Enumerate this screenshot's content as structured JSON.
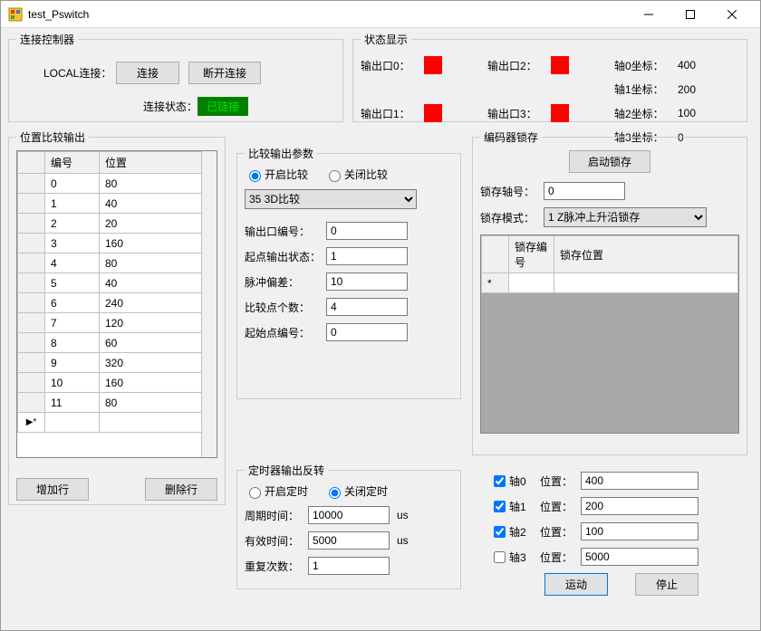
{
  "window": {
    "title": "test_Pswitch"
  },
  "connect_group": {
    "legend": "连接控制器",
    "local_label": "LOCAL连接：",
    "connect_btn": "连接",
    "disconnect_btn": "断开连接",
    "status_label": "连接状态：",
    "status_value": "已链接"
  },
  "status_group": {
    "legend": "状态显示",
    "out0": "输出口0：",
    "out1": "输出口1：",
    "out2": "输出口2：",
    "out3": "输出口3：",
    "axis0": "轴0坐标：",
    "axis1": "轴1坐标：",
    "axis2": "轴2坐标：",
    "axis3": "轴3坐标：",
    "axis0v": "400",
    "axis1v": "200",
    "axis2v": "100",
    "axis3v": "0"
  },
  "pos_group": {
    "legend": "位置比较输出",
    "col_id": "编号",
    "col_pos": "位置",
    "rows": [
      [
        "0",
        "80"
      ],
      [
        "1",
        "40"
      ],
      [
        "2",
        "20"
      ],
      [
        "3",
        "160"
      ],
      [
        "4",
        "80"
      ],
      [
        "5",
        "40"
      ],
      [
        "6",
        "240"
      ],
      [
        "7",
        "120"
      ],
      [
        "8",
        "60"
      ],
      [
        "9",
        "320"
      ],
      [
        "10",
        "160"
      ],
      [
        "11",
        "80"
      ]
    ],
    "add_row": "增加行",
    "del_row": "删除行"
  },
  "compare_group": {
    "legend": "比较输出参数",
    "radio_on": "开启比较",
    "radio_off": "关闭比较",
    "mode_select": "35 3D比较",
    "out_no_label": "输出口编号：",
    "out_no": "0",
    "start_state_label": "起点输出状态：",
    "start_state": "1",
    "pulse_label": "脉冲偏差：",
    "pulse": "10",
    "count_label": "比较点个数：",
    "count": "4",
    "start_idx_label": "起始点编号：",
    "start_idx": "0"
  },
  "timer_group": {
    "legend": "定时器输出反转",
    "radio_on": "开启定时",
    "radio_off": "关闭定时",
    "period_label": "周期时间：",
    "period": "10000",
    "valid_label": "有效时间：",
    "valid": "5000",
    "repeat_label": "重复次数：",
    "repeat": "1",
    "unit": "us"
  },
  "encoder_group": {
    "legend": "编码器锁存",
    "start_btn": "启动锁存",
    "axis_label": "锁存轴号：",
    "axis": "0",
    "mode_label": "锁存模式：",
    "mode": "1 Z脉冲上升沿锁存",
    "col1": "锁存编号",
    "col2": "锁存位置"
  },
  "motion": {
    "axis0": "轴0",
    "axis1": "轴1",
    "axis2": "轴2",
    "axis3": "轴3",
    "pos_label": "位置：",
    "v0": "400",
    "v1": "200",
    "v2": "100",
    "v3": "5000",
    "run": "运动",
    "stop": "停止"
  }
}
